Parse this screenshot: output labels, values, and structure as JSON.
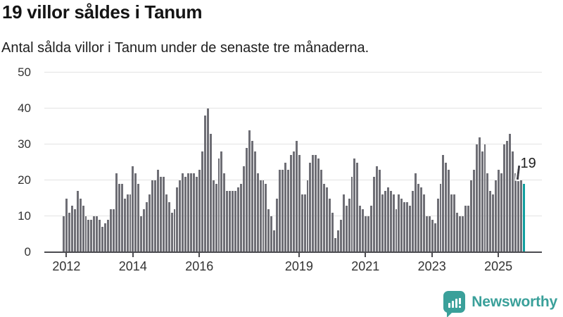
{
  "header": {
    "title": "19 villor såldes i Tanum",
    "subtitle": "Antal sålda villor i Tanum under de senaste tre månaderna."
  },
  "chart_data": {
    "type": "bar",
    "title": "19 villor såldes i Tanum",
    "subtitle": "Antal sålda villor i Tanum under de senaste tre månaderna.",
    "ylabel": "",
    "xlabel": "",
    "ylim": [
      0,
      50
    ],
    "y_ticks": [
      0,
      10,
      20,
      30,
      40,
      50
    ],
    "grid": "horizontal",
    "x_ticks": [
      {
        "label": "2012",
        "bar_index": 1
      },
      {
        "label": "2014",
        "bar_index": 25
      },
      {
        "label": "2016",
        "bar_index": 49
      },
      {
        "label": "2019",
        "bar_index": 85
      },
      {
        "label": "2021",
        "bar_index": 109
      },
      {
        "label": "2023",
        "bar_index": 133
      },
      {
        "label": "2025",
        "bar_index": 157
      }
    ],
    "values": [
      10,
      15,
      11,
      13,
      12,
      17,
      15,
      13,
      10,
      9,
      9,
      10,
      10,
      9,
      7,
      8,
      9,
      12,
      12,
      22,
      19,
      19,
      15,
      16,
      16,
      24,
      22,
      19,
      10,
      12,
      14,
      16,
      20,
      20,
      23,
      21,
      21,
      16,
      14,
      11,
      12,
      18,
      20,
      22,
      21,
      22,
      22,
      22,
      21,
      23,
      28,
      38,
      40,
      33,
      20,
      19,
      26,
      28,
      22,
      17,
      17,
      17,
      17,
      18,
      19,
      24,
      29,
      34,
      31,
      28,
      22,
      20,
      20,
      19,
      12,
      10,
      6,
      15,
      23,
      23,
      25,
      23,
      27,
      28,
      31,
      27,
      16,
      16,
      20,
      25,
      27,
      27,
      26,
      23,
      19,
      18,
      15,
      11,
      4,
      6,
      9,
      16,
      13,
      15,
      21,
      26,
      25,
      13,
      12,
      10,
      10,
      13,
      21,
      24,
      23,
      16,
      17,
      18,
      17,
      16,
      12,
      16,
      15,
      14,
      14,
      13,
      17,
      22,
      19,
      18,
      16,
      10,
      10,
      9,
      8,
      15,
      19,
      27,
      25,
      23,
      16,
      16,
      11,
      10,
      10,
      13,
      13,
      20,
      23,
      30,
      32,
      28,
      30,
      22,
      17,
      16,
      20,
      23,
      22,
      30,
      31,
      33,
      28,
      22,
      21,
      20,
      19
    ],
    "highlight_index": 166,
    "highlight_label": "19",
    "colors": {
      "bar": "#6e6e75",
      "highlight": "#0f9e9e",
      "grid": "#e3e3e3",
      "axis": "#4b4b50",
      "tick_text": "#333333"
    },
    "legend": []
  },
  "annotation": {
    "label": "19"
  },
  "branding": {
    "name": "Newsworthy",
    "color": "#3aa09a"
  }
}
